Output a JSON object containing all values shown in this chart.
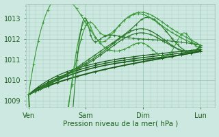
{
  "bg_color": "#cde8e0",
  "grid_color": "#9ec8b8",
  "line_color_dark": "#1a5c1a",
  "line_color_mid": "#2d7a2d",
  "line_color_light": "#3a9a3a",
  "xlabel": "Pression niveau de la mer( hPa )",
  "xtick_labels": [
    "Ven",
    "Sam",
    "Dim",
    "Lun"
  ],
  "xtick_positions": [
    0,
    48,
    96,
    144
  ],
  "ytick_labels": [
    "1009",
    "1010",
    "1011",
    "1012",
    "1013"
  ],
  "ytick_positions": [
    1009,
    1010,
    1011,
    1012,
    1013
  ],
  "ylim": [
    1008.7,
    1013.7
  ],
  "xlim": [
    -2,
    156
  ]
}
